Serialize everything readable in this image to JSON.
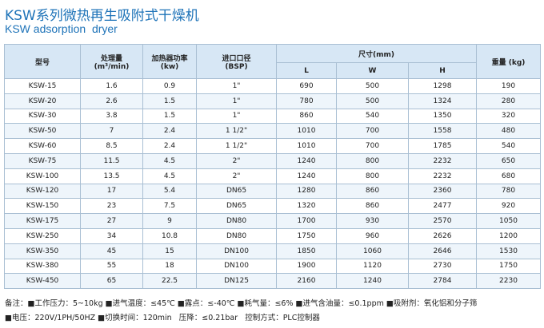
{
  "header": {
    "title": "KSW系列微热再生吸附式干燥机",
    "subtitle": "KSW adsorption  dryer"
  },
  "table": {
    "headers": {
      "model": "型号",
      "flow": "处理量",
      "flow_unit": "(m³/min)",
      "heater": "加热器功率",
      "heater_unit": "(kw)",
      "inlet": "进口口径",
      "inlet_unit": "(BSP)",
      "size": "尺寸(mm)",
      "L": "L",
      "W": "W",
      "H": "H",
      "weight": "重量 (kg)"
    },
    "rows": [
      [
        "KSW-15",
        "1.6",
        "0.9",
        "1\"",
        "690",
        "500",
        "1298",
        "190"
      ],
      [
        "KSW-20",
        "2.6",
        "1.5",
        "1\"",
        "780",
        "500",
        "1324",
        "280"
      ],
      [
        "KSW-30",
        "3.8",
        "1.5",
        "1\"",
        "860",
        "540",
        "1350",
        "320"
      ],
      [
        "KSW-50",
        "7",
        "2.4",
        "1 1/2\"",
        "1010",
        "700",
        "1558",
        "480"
      ],
      [
        "KSW-60",
        "8.5",
        "2.4",
        "1 1/2\"",
        "1010",
        "700",
        "1785",
        "540"
      ],
      [
        "KSW-75",
        "11.5",
        "4.5",
        "2\"",
        "1240",
        "800",
        "2232",
        "650"
      ],
      [
        "KSW-100",
        "13.5",
        "4.5",
        "2\"",
        "1240",
        "800",
        "2232",
        "680"
      ],
      [
        "KSW-120",
        "17",
        "5.4",
        "DN65",
        "1280",
        "860",
        "2360",
        "780"
      ],
      [
        "KSW-150",
        "23",
        "7.5",
        "DN65",
        "1320",
        "860",
        "2477",
        "920"
      ],
      [
        "KSW-175",
        "27",
        "9",
        "DN80",
        "1700",
        "930",
        "2570",
        "1050"
      ],
      [
        "KSW-250",
        "34",
        "10.8",
        "DN80",
        "1750",
        "960",
        "2626",
        "1200"
      ],
      [
        "KSW-350",
        "45",
        "15",
        "DN100",
        "1850",
        "1060",
        "2646",
        "1530"
      ],
      [
        "KSW-380",
        "55",
        "18",
        "DN100",
        "1900",
        "1120",
        "2730",
        "1750"
      ],
      [
        "KSW-450",
        "65",
        "22.5",
        "DN125",
        "2160",
        "1240",
        "2784",
        "2230"
      ]
    ]
  },
  "notes": [
    "备注：■工作压力：5~10kg ■进气温度：≤45℃ ■露点：≤-40℃ ■耗气量：≤6% ■进气含油量：≤0.1ppm ■吸附剂：氧化铝和分子筛",
    "■电压：220V/1PH/50HZ ■切换时间：120min   压降：≤0.21bar   控制方式：PLC控制器"
  ]
}
